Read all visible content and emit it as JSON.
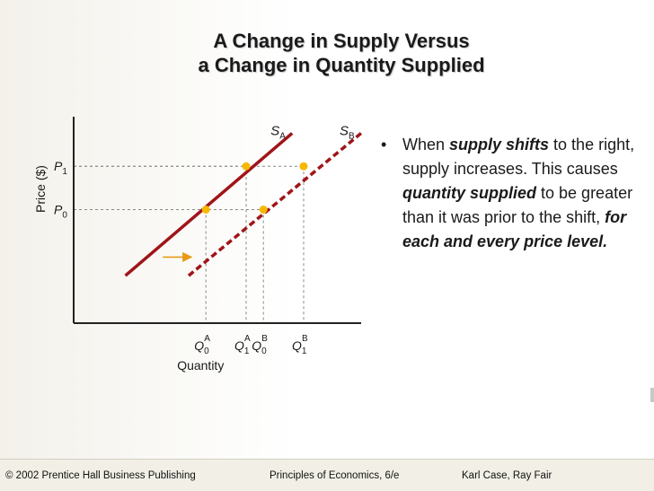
{
  "slide": {
    "title_line1": "A Change in Supply Versus",
    "title_line2": "a Change in Quantity Supplied"
  },
  "bullet": {
    "marker": "•",
    "parts": [
      {
        "text": "When ",
        "emph": false
      },
      {
        "text": "supply shifts",
        "emph": true
      },
      {
        "text": " to the right, supply increases. This causes ",
        "emph": false
      },
      {
        "text": "quantity supplied",
        "emph": true
      },
      {
        "text": " to be greater than it was prior to the shift, ",
        "emph": false
      },
      {
        "text": "for each and every price level.",
        "emph": true
      }
    ]
  },
  "footer": {
    "left": "© 2002 Prentice Hall Business Publishing",
    "center": "Principles of Economics, 6/e",
    "right": "Karl Case, Ray Fair"
  },
  "chart_data": {
    "type": "line",
    "title": "",
    "xlabel": "Quantity",
    "ylabel": "Price ($)",
    "xlim": [
      0,
      10
    ],
    "ylim": [
      0,
      10
    ],
    "grid": false,
    "x_ticks": [
      {
        "main": "Q",
        "sub": "0",
        "sup": "A",
        "x": 4.6
      },
      {
        "main": "Q",
        "sub": "1",
        "sup": "A",
        "x": 6.0
      },
      {
        "main": "Q",
        "sub": "0",
        "sup": "B",
        "x": 6.6
      },
      {
        "main": "Q",
        "sub": "1",
        "sup": "B",
        "x": 8.0
      }
    ],
    "y_ticks": [
      {
        "main": "P",
        "sub": "0",
        "y": 5.5
      },
      {
        "main": "P",
        "sub": "1",
        "y": 7.6
      }
    ],
    "series": [
      {
        "name_main": "S",
        "name_sub": "A",
        "style": "solid",
        "color": "#a01418",
        "points": [
          [
            1.8,
            2.3
          ],
          [
            7.6,
            9.2
          ]
        ]
      },
      {
        "name_main": "S",
        "name_sub": "B",
        "style": "dashed",
        "color": "#a01418",
        "points": [
          [
            4.0,
            2.3
          ],
          [
            10.0,
            9.2
          ]
        ]
      }
    ],
    "points": [
      {
        "x": 4.6,
        "y": 5.5,
        "color": "#f6b800"
      },
      {
        "x": 6.0,
        "y": 7.6,
        "color": "#f6b800"
      },
      {
        "x": 6.6,
        "y": 5.5,
        "color": "#f6b800"
      },
      {
        "x": 8.0,
        "y": 7.6,
        "color": "#f6b800"
      }
    ],
    "shift_arrow": {
      "from": [
        3.1,
        3.2
      ],
      "to": [
        4.1,
        3.2
      ],
      "color": "#e79a17"
    },
    "axis_color": "#222222",
    "guide_color": "#888888"
  }
}
